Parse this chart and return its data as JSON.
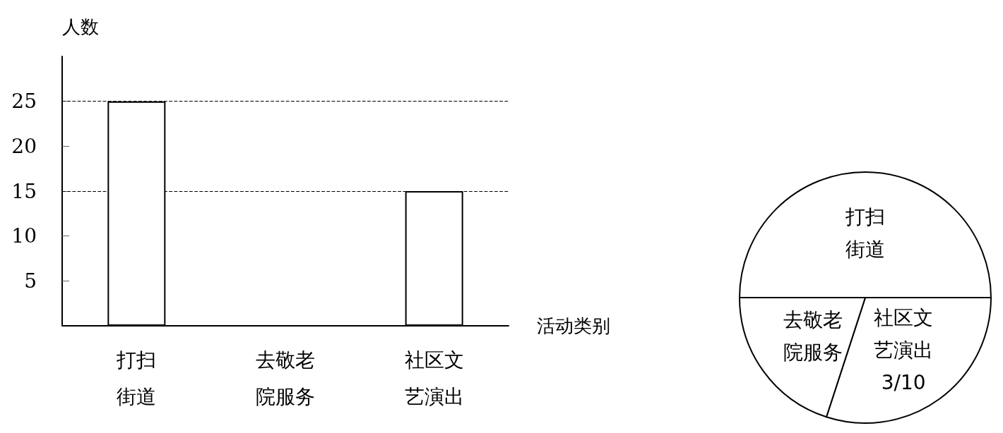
{
  "chart_data": [
    {
      "type": "bar",
      "xlabel": "活动类别",
      "ylabel": "人数",
      "categories": [
        "打扫街道",
        "去敬老院服务",
        "社区文艺演出"
      ],
      "values": [
        25,
        null,
        15
      ],
      "color": "#ffffff",
      "ylim": [
        0,
        30
      ],
      "yticks": [
        5,
        10,
        15,
        20,
        25
      ],
      "grid": false,
      "legend": false,
      "ref_lines": [
        {
          "axis": "y",
          "value": 25,
          "line_style": "dashed",
          "color": "#000000"
        },
        {
          "axis": "y",
          "value": 15,
          "line_style": "dashed",
          "color": "#000000"
        }
      ]
    },
    {
      "type": "pie",
      "categories": [
        "打扫街道",
        "社区文艺演出",
        "去敬老院服务"
      ],
      "values": [
        0.5,
        0.3,
        0.2
      ],
      "colors": [
        "#ffffff",
        "#ffffff",
        "#ffffff"
      ],
      "value_labels": [
        null,
        "3/10",
        null
      ],
      "legend": false
    }
  ]
}
